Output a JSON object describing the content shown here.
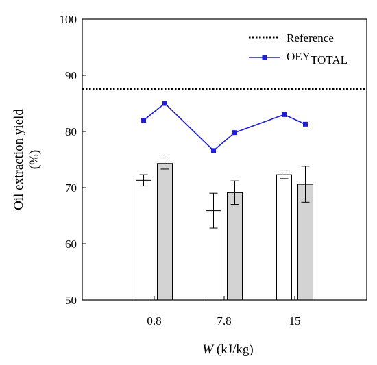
{
  "chart_data": {
    "type": "bar",
    "categories": [
      "0.8",
      "7.8",
      "15"
    ],
    "series": [
      {
        "values": [
          71.3,
          65.9,
          72.3
        ],
        "error": [
          1.0,
          3.1,
          0.7
        ],
        "color": "#ffffff"
      },
      {
        "values": [
          74.3,
          69.1,
          70.6
        ],
        "error": [
          1.0,
          2.1,
          3.2
        ],
        "color": "#d3d3d3"
      }
    ],
    "line_series": {
      "name_main": "OEY",
      "name_sub": "TOTAL",
      "color": "#1f1fd6",
      "points": [
        {
          "x": "0.8",
          "slot": 0,
          "y": 82.0
        },
        {
          "x": "0.8",
          "slot": 1,
          "y": 85.0
        },
        {
          "x": "7.8",
          "slot": 0,
          "y": 76.6
        },
        {
          "x": "7.8",
          "slot": 1,
          "y": 79.8
        },
        {
          "x": "15",
          "slot": 0,
          "y": 83.0
        },
        {
          "x": "15",
          "slot": 1,
          "y": 81.3
        }
      ]
    },
    "reference": {
      "name": "Reference",
      "value": 87.5,
      "color": "#000000"
    },
    "ylabel_line1": "Oil extraction yield",
    "ylabel_line2": "(%)",
    "xlabel_italic": "W",
    "xlabel_rest": " (kJ/kg)",
    "ylim": [
      50,
      100
    ],
    "yticks": [
      50,
      60,
      70,
      80,
      90,
      100
    ],
    "legend_position": "top-right",
    "grid": false
  }
}
